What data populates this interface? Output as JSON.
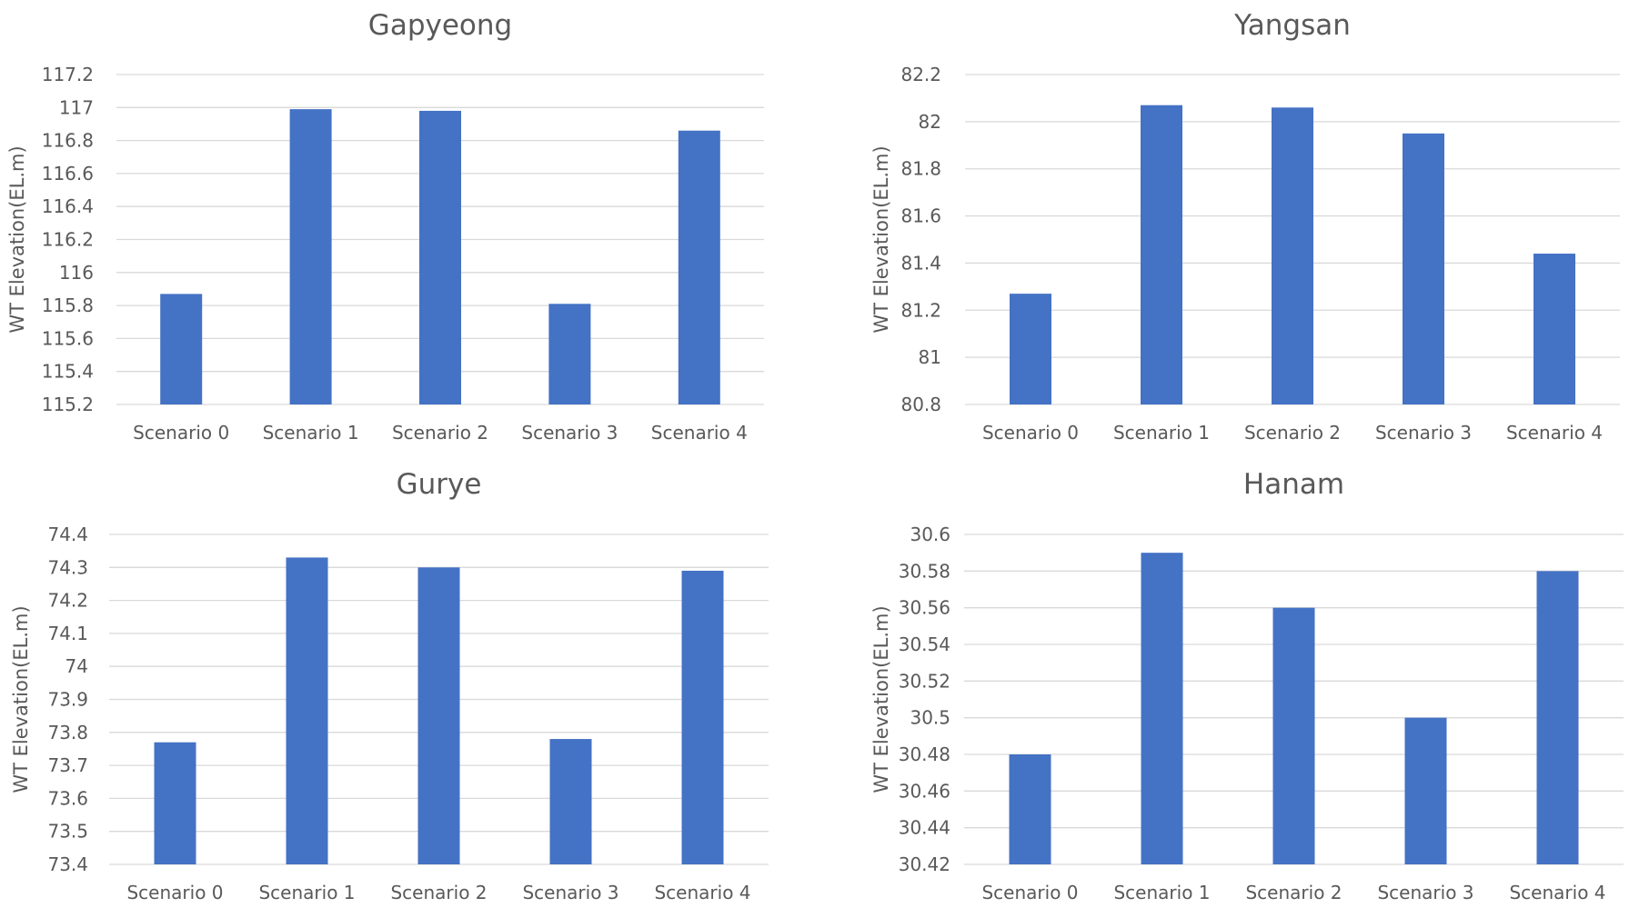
{
  "chart_data": [
    {
      "type": "bar",
      "title": "Gapyeong",
      "ylabel": "WT Elevation(EL.m)",
      "xlabel": "",
      "categories": [
        "Scenario 0",
        "Scenario 1",
        "Scenario 2",
        "Scenario 3",
        "Scenario 4"
      ],
      "values": [
        115.87,
        116.99,
        116.98,
        115.81,
        116.86
      ],
      "ylim": [
        115.2,
        117.2
      ],
      "yticks": [
        "115.2",
        "115.4",
        "115.6",
        "115.8",
        "116",
        "116.2",
        "116.4",
        "116.6",
        "116.8",
        "117",
        "117.2"
      ],
      "grid": true,
      "bar_color": "#4472c4"
    },
    {
      "type": "bar",
      "title": "Yangsan",
      "ylabel": "WT Elevation(EL.m)",
      "xlabel": "",
      "categories": [
        "Scenario 0",
        "Scenario 1",
        "Scenario 2",
        "Scenario 3",
        "Scenario 4"
      ],
      "values": [
        81.27,
        82.07,
        82.06,
        81.95,
        81.44
      ],
      "ylim": [
        80.8,
        82.2
      ],
      "yticks": [
        "80.8",
        "81",
        "81.2",
        "81.4",
        "81.6",
        "81.8",
        "82",
        "82.2"
      ],
      "grid": true,
      "bar_color": "#4472c4"
    },
    {
      "type": "bar",
      "title": "Gurye",
      "ylabel": "WT Elevation(EL.m)",
      "xlabel": "",
      "categories": [
        "Scenario 0",
        "Scenario 1",
        "Scenario 2",
        "Scenario 3",
        "Scenario 4"
      ],
      "values": [
        73.77,
        74.33,
        74.3,
        73.78,
        74.29
      ],
      "ylim": [
        73.4,
        74.4
      ],
      "yticks": [
        "73.4",
        "73.5",
        "73.6",
        "73.7",
        "73.8",
        "73.9",
        "74",
        "74.1",
        "74.2",
        "74.3",
        "74.4"
      ],
      "grid": true,
      "bar_color": "#4472c4"
    },
    {
      "type": "bar",
      "title": "Hanam",
      "ylabel": "WT Elevation(EL.m)",
      "xlabel": "",
      "categories": [
        "Scenario 0",
        "Scenario 1",
        "Scenario 2",
        "Scenario 3",
        "Scenario 4"
      ],
      "values": [
        30.48,
        30.59,
        30.56,
        30.5,
        30.58
      ],
      "ylim": [
        30.42,
        30.6
      ],
      "yticks": [
        "30.42",
        "30.44",
        "30.46",
        "30.48",
        "30.5",
        "30.52",
        "30.54",
        "30.56",
        "30.58",
        "30.6"
      ],
      "grid": true,
      "bar_color": "#4472c4"
    }
  ]
}
